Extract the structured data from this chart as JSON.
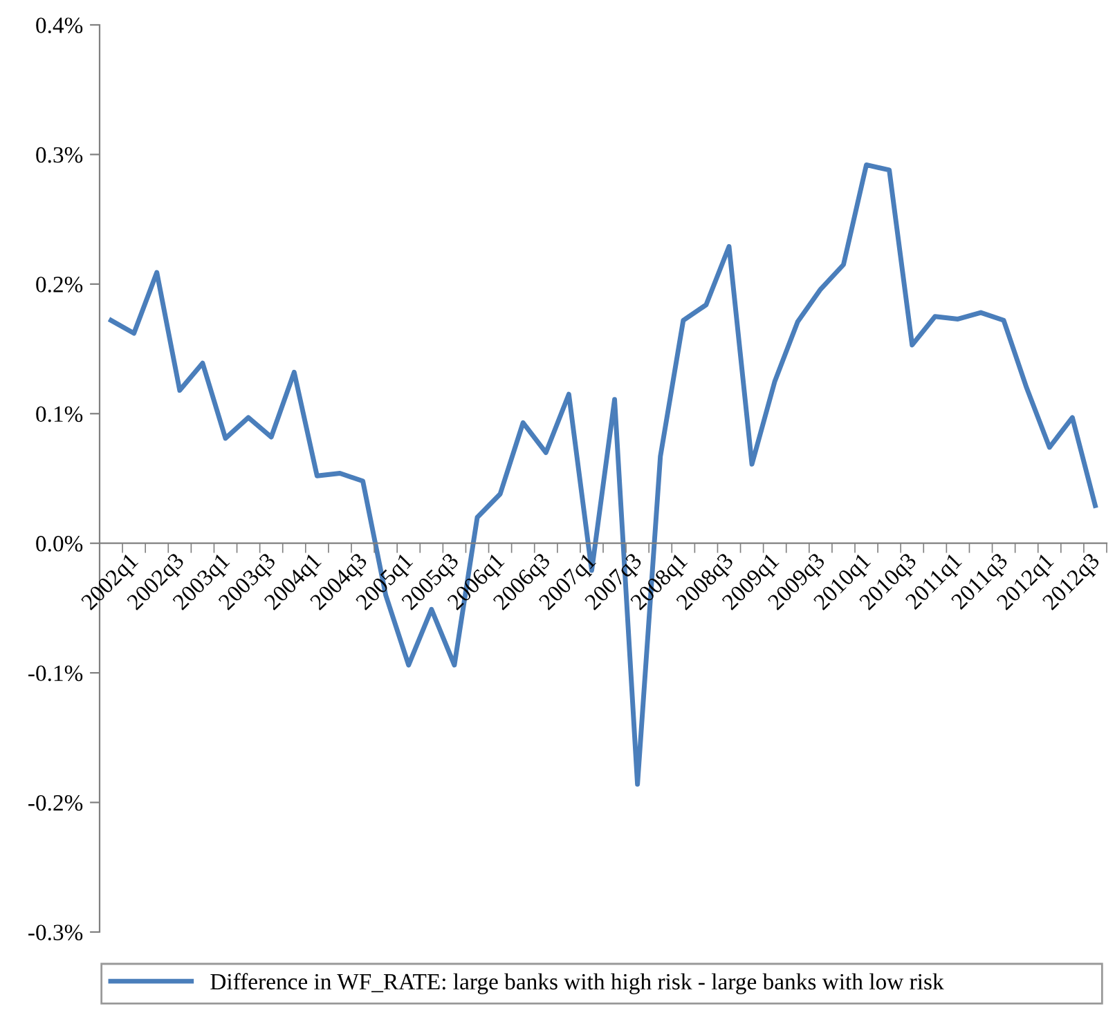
{
  "chart_data": {
    "type": "line",
    "categories": [
      "2002q1",
      null,
      "2002q3",
      null,
      "2003q1",
      null,
      "2003q3",
      null,
      "2004q1",
      null,
      "2004q3",
      null,
      "2005q1",
      null,
      "2005q3",
      null,
      "2006q1",
      null,
      "2006q3",
      null,
      "2007q1",
      null,
      "2007q3",
      null,
      "2008q1",
      null,
      "2008q3",
      null,
      "2009q1",
      null,
      "2009q3",
      null,
      "2010q1",
      null,
      "2010q3",
      null,
      "2011q1",
      null,
      "2011q3",
      null,
      "2012q1",
      null,
      "2012q3",
      null
    ],
    "series": [
      {
        "name": "Difference in WF_RATE: large banks with high risk - large banks with low risk",
        "color": "#4a7ebb",
        "values": [
          0.172,
          0.162,
          0.209,
          0.118,
          0.139,
          0.081,
          0.097,
          0.082,
          0.132,
          0.052,
          0.054,
          0.048,
          -0.04,
          -0.094,
          -0.051,
          -0.094,
          0.02,
          0.038,
          0.093,
          0.07,
          0.115,
          -0.021,
          0.111,
          -0.186,
          0.067,
          0.172,
          0.184,
          0.229,
          0.061,
          0.125,
          0.171,
          0.196,
          0.215,
          0.292,
          0.288,
          0.153,
          0.175,
          0.173,
          0.178,
          0.172,
          0.12,
          0.074,
          0.097,
          0.029
        ]
      }
    ],
    "ylim": [
      -0.3,
      0.4
    ],
    "yticks": [
      {
        "value": -0.3,
        "label": "-0.3%"
      },
      {
        "value": -0.2,
        "label": "-0.2%"
      },
      {
        "value": -0.1,
        "label": "-0.1%"
      },
      {
        "value": 0.0,
        "label": "0.0%"
      },
      {
        "value": 0.1,
        "label": "0.1%"
      },
      {
        "value": 0.2,
        "label": "0.2%"
      },
      {
        "value": 0.3,
        "label": "0.3%"
      },
      {
        "value": 0.4,
        "label": "0.4%"
      }
    ],
    "grid": false,
    "legend": "bottom",
    "marker": "none",
    "line_style": "solid"
  }
}
